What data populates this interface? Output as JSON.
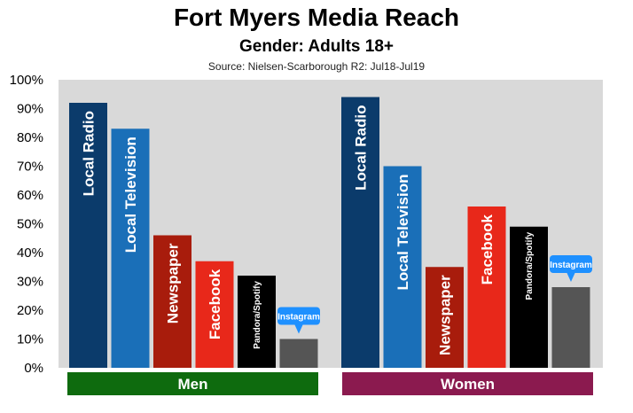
{
  "header": {
    "title": "Fort Myers Media Reach",
    "subtitle": "Gender: Adults 18+",
    "source": "Source: Nielsen-Scarborough R2: Jul18-Jul19"
  },
  "chart_data": {
    "type": "bar",
    "title": "Fort Myers Media Reach",
    "subtitle": "Gender: Adults 18+",
    "ylim": [
      0,
      100
    ],
    "y_ticks": [
      "0%",
      "10%",
      "20%",
      "30%",
      "40%",
      "50%",
      "60%",
      "70%",
      "80%",
      "90%",
      "100%"
    ],
    "grid": false,
    "groups": [
      "Men",
      "Women"
    ],
    "group_colors": [
      "#0e6b0e",
      "#8b1a4f"
    ],
    "categories": [
      "Local Radio",
      "Local Television",
      "Newspaper",
      "Facebook",
      "Pandora/Spotify",
      "Instagram"
    ],
    "category_colors": [
      "#0b3b6b",
      "#1a6fb8",
      "#a81c0c",
      "#e8281a",
      "#000000",
      "#555555"
    ],
    "callout_color": "#1e90ff",
    "series": [
      {
        "name": "Men",
        "values": [
          92,
          83,
          46,
          37,
          32,
          10
        ]
      },
      {
        "name": "Women",
        "values": [
          94,
          70,
          35,
          56,
          49,
          28
        ]
      }
    ]
  }
}
